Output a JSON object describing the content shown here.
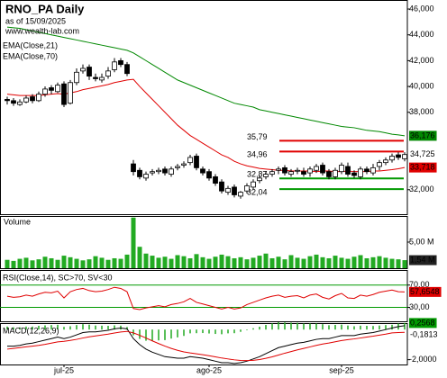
{
  "chart_data": [
    {
      "type": "candlestick",
      "title": "RNO_PA Daily",
      "subtitle": "as of 15/09/2025",
      "source": "www.wealth-lab.com",
      "categories": [
        null,
        null,
        null,
        null,
        null,
        null,
        null,
        null,
        null,
        "jul-25",
        null,
        null,
        null,
        null,
        null,
        null,
        null,
        null,
        null,
        null,
        null,
        null,
        null,
        null,
        null,
        null,
        null,
        null,
        null,
        null,
        null,
        null,
        "ago-25",
        null,
        null,
        null,
        null,
        null,
        null,
        null,
        null,
        null,
        null,
        null,
        null,
        null,
        null,
        null,
        null,
        null,
        null,
        null,
        null,
        "sep-25",
        null,
        null,
        null,
        null,
        null,
        null,
        null,
        null,
        null,
        null
      ],
      "open": [
        39.0,
        38.9,
        38.6,
        38.8,
        39.2,
        38.9,
        39.4,
        39.9,
        39.6,
        40.2,
        38.7,
        40.3,
        41.2,
        41.5,
        40.7,
        40.5,
        40.8,
        41.3,
        42.0,
        41.7,
        34.0,
        33.5,
        32.9,
        33.3,
        33.4,
        33.6,
        33.2,
        33.7,
        33.9,
        34.1,
        34.6,
        33.6,
        33.4,
        33.0,
        32.6,
        31.8,
        32.2,
        31.5,
        31.9,
        32.2,
        32.7,
        33.0,
        33.2,
        33.5,
        33.7,
        33.2,
        33.5,
        33.4,
        33.3,
        33.5,
        33.9,
        33.4,
        33.0,
        33.4,
        33.8,
        33.3,
        33.0,
        33.6,
        33.3,
        33.8,
        34.1,
        34.3,
        34.7,
        34.4
      ],
      "high": [
        39.2,
        39.1,
        39.0,
        39.3,
        39.4,
        39.6,
        40.0,
        40.1,
        40.3,
        40.4,
        40.5,
        41.4,
        41.7,
        41.7,
        41.0,
        41.0,
        41.5,
        42.2,
        42.2,
        41.9,
        34.3,
        33.7,
        33.4,
        33.6,
        33.7,
        33.8,
        33.8,
        34.0,
        34.2,
        34.7,
        34.8,
        33.8,
        33.6,
        33.2,
        32.8,
        32.3,
        32.4,
        31.9,
        32.5,
        32.8,
        33.1,
        33.4,
        33.6,
        33.8,
        33.9,
        33.6,
        33.7,
        33.7,
        33.8,
        34.0,
        34.1,
        33.6,
        33.7,
        34.1,
        34.1,
        33.5,
        33.8,
        33.8,
        34.0,
        34.3,
        34.5,
        34.8,
        34.9,
        34.9
      ],
      "low": [
        38.6,
        38.5,
        38.5,
        38.7,
        38.7,
        38.8,
        39.2,
        39.4,
        39.5,
        38.4,
        38.6,
        40.1,
        41.0,
        40.5,
        40.4,
        40.3,
        40.6,
        41.1,
        41.5,
        40.8,
        33.1,
        32.8,
        32.7,
        33.1,
        33.2,
        33.1,
        33.0,
        33.5,
        33.7,
        33.9,
        33.5,
        33.1,
        32.7,
        32.3,
        31.7,
        31.6,
        31.4,
        31.3,
        31.7,
        32.0,
        32.5,
        32.8,
        33.0,
        33.2,
        33.1,
        33.0,
        33.2,
        33.0,
        33.0,
        33.3,
        33.1,
        32.8,
        32.8,
        33.2,
        33.0,
        32.9,
        32.8,
        33.2,
        33.1,
        33.5,
        33.9,
        34.1,
        34.3,
        34.2
      ],
      "close": [
        38.9,
        38.7,
        38.8,
        39.1,
        38.9,
        39.4,
        39.8,
        39.7,
        40.1,
        38.6,
        40.3,
        41.1,
        41.4,
        40.8,
        40.6,
        40.7,
        41.2,
        41.9,
        41.7,
        41.0,
        33.4,
        33.0,
        33.2,
        33.4,
        33.5,
        33.3,
        33.6,
        33.8,
        34.0,
        34.5,
        33.7,
        33.3,
        32.9,
        32.5,
        31.9,
        32.1,
        31.6,
        31.8,
        32.3,
        32.6,
        32.9,
        33.2,
        33.4,
        33.6,
        33.3,
        33.4,
        33.5,
        33.2,
        33.6,
        33.8,
        33.3,
        33.0,
        33.5,
        33.9,
        33.2,
        33.1,
        33.6,
        33.4,
        33.7,
        34.1,
        34.3,
        34.6,
        34.5,
        34.725
      ],
      "last_label": "34,725",
      "series": [
        {
          "name": "EMA(Close,21)",
          "color": "#e00000",
          "last_label": "33,718",
          "values": [
            39.4,
            39.35,
            39.3,
            39.3,
            39.3,
            39.3,
            39.35,
            39.4,
            39.45,
            39.4,
            39.5,
            39.6,
            39.75,
            39.85,
            39.95,
            40.05,
            40.15,
            40.3,
            40.4,
            40.5,
            40.55,
            40.0,
            39.5,
            39.0,
            38.5,
            38.0,
            37.5,
            37.0,
            36.6,
            36.2,
            35.9,
            35.6,
            35.3,
            35.0,
            34.7,
            34.5,
            34.2,
            34.0,
            33.85,
            33.75,
            33.65,
            33.6,
            33.55,
            33.5,
            33.5,
            33.45,
            33.45,
            33.45,
            33.45,
            33.4,
            33.45,
            33.45,
            33.4,
            33.4,
            33.45,
            33.4,
            33.4,
            33.4,
            33.45,
            33.45,
            33.5,
            33.55,
            33.62,
            33.718
          ]
        },
        {
          "name": "EMA(Close,70)",
          "color": "#008800",
          "last_label": "36,176",
          "values": [
            44.6,
            44.55,
            44.5,
            44.4,
            44.3,
            44.2,
            44.1,
            44.0,
            43.9,
            43.8,
            43.7,
            43.6,
            43.5,
            43.4,
            43.3,
            43.2,
            43.1,
            43.0,
            42.9,
            42.8,
            42.6,
            42.3,
            42.0,
            41.7,
            41.4,
            41.1,
            40.8,
            40.5,
            40.3,
            40.1,
            39.9,
            39.7,
            39.5,
            39.3,
            39.1,
            38.9,
            38.7,
            38.6,
            38.5,
            38.4,
            38.2,
            38.1,
            38.0,
            37.9,
            37.8,
            37.7,
            37.6,
            37.5,
            37.4,
            37.3,
            37.2,
            37.1,
            37.0,
            36.9,
            36.85,
            36.8,
            36.7,
            36.6,
            36.55,
            36.5,
            36.4,
            36.3,
            36.25,
            36.176
          ]
        }
      ],
      "levels": [
        {
          "value": 35.79,
          "label": "35,79",
          "color": "#e00000"
        },
        {
          "value": 34.96,
          "label": "34,96",
          "color": "#e00000"
        },
        {
          "value": 32.87,
          "label": "32,87",
          "color": "#009900"
        },
        {
          "value": 32.04,
          "label": "32,04",
          "color": "#009900"
        }
      ],
      "ylim": [
        30.1,
        46.7
      ],
      "yticks": [
        {
          "value": 32,
          "label": "32,000"
        },
        {
          "value": 38,
          "label": "38,000"
        },
        {
          "value": 40,
          "label": "40,000"
        },
        {
          "value": 42,
          "label": "42,000"
        },
        {
          "value": 44,
          "label": "44,000"
        },
        {
          "value": 46,
          "label": "46,000"
        }
      ]
    },
    {
      "type": "bar",
      "title": "Volume",
      "color": "#22aa22",
      "last_label": "1,54 M",
      "values": [
        1.6,
        1.4,
        1.8,
        2.0,
        1.5,
        1.7,
        2.2,
        1.9,
        1.6,
        2.4,
        2.1,
        1.8,
        1.5,
        1.7,
        2.3,
        2.0,
        1.6,
        1.9,
        1.8,
        2.6,
        9.7,
        4.1,
        2.8,
        2.4,
        2.0,
        2.2,
        1.8,
        2.5,
        2.3,
        1.9,
        2.7,
        2.1,
        1.8,
        2.2,
        2.6,
        2.3,
        1.9,
        2.1,
        1.7,
        2.0,
        2.4,
        2.8,
        1.9,
        2.2,
        1.7,
        2.5,
        2.0,
        1.8,
        2.3,
        2.6,
        2.1,
        1.9,
        2.4,
        2.0,
        1.8,
        2.2,
        2.5,
        1.9,
        2.1,
        2.3,
        2.0,
        1.8,
        1.7,
        1.54
      ],
      "ylim": [
        0,
        10
      ],
      "yticks": [
        {
          "value": 5,
          "label": "5,00 M"
        }
      ]
    },
    {
      "type": "line",
      "title": "RSI(Close,14), SC>70, SV<30",
      "color": "#e00000",
      "band_color": "#009900",
      "last_label": "57,6548",
      "values": [
        50,
        48,
        49,
        52,
        50,
        54,
        57,
        56,
        59,
        47,
        58,
        62,
        64,
        60,
        58,
        59,
        62,
        66,
        64,
        58,
        28,
        26,
        29,
        31,
        33,
        31,
        35,
        37,
        40,
        46,
        39,
        36,
        33,
        30,
        27,
        30,
        27,
        29,
        35,
        39,
        43,
        47,
        50,
        52,
        48,
        50,
        51,
        47,
        52,
        54,
        48,
        45,
        51,
        55,
        47,
        46,
        52,
        50,
        53,
        57,
        59,
        61,
        58,
        57.6548
      ],
      "ylim": [
        5,
        97
      ],
      "yticks": [
        {
          "value": 30,
          "label": "30,00"
        },
        {
          "value": 70,
          "label": "70,00"
        }
      ]
    },
    {
      "type": "macd",
      "title": "MACD(12,26,9)",
      "series": [
        {
          "name": "MACD",
          "color": "#000000",
          "last_label": "0,2568",
          "values": [
            -1.1,
            -1.1,
            -1.05,
            -0.95,
            -0.9,
            -0.8,
            -0.7,
            -0.6,
            -0.5,
            -0.6,
            -0.5,
            -0.35,
            -0.2,
            -0.15,
            -0.15,
            -0.1,
            -0.05,
            0.05,
            0.1,
            0.05,
            -0.6,
            -1.0,
            -1.3,
            -1.5,
            -1.65,
            -1.8,
            -1.85,
            -1.9,
            -1.9,
            -1.8,
            -1.85,
            -1.9,
            -2.0,
            -2.1,
            -2.2,
            -2.2,
            -2.25,
            -2.2,
            -2.1,
            -1.95,
            -1.8,
            -1.6,
            -1.4,
            -1.2,
            -1.1,
            -1.0,
            -0.9,
            -0.85,
            -0.75,
            -0.65,
            -0.6,
            -0.6,
            -0.5,
            -0.4,
            -0.4,
            -0.4,
            -0.3,
            -0.25,
            -0.2,
            -0.1,
            0.0,
            0.1,
            0.2,
            0.2568
          ]
        },
        {
          "name": "Signal",
          "color": "#e00000",
          "last_label": "-0,1813",
          "values": [
            -1.3,
            -1.25,
            -1.2,
            -1.15,
            -1.1,
            -1.05,
            -0.98,
            -0.9,
            -0.82,
            -0.78,
            -0.72,
            -0.65,
            -0.56,
            -0.48,
            -0.42,
            -0.36,
            -0.3,
            -0.23,
            -0.16,
            -0.12,
            -0.22,
            -0.38,
            -0.56,
            -0.75,
            -0.93,
            -1.1,
            -1.25,
            -1.38,
            -1.48,
            -1.55,
            -1.61,
            -1.67,
            -1.74,
            -1.81,
            -1.89,
            -1.95,
            -2.01,
            -2.05,
            -2.06,
            -2.04,
            -1.99,
            -1.91,
            -1.81,
            -1.69,
            -1.57,
            -1.46,
            -1.35,
            -1.25,
            -1.15,
            -1.05,
            -0.96,
            -0.89,
            -0.81,
            -0.73,
            -0.67,
            -0.62,
            -0.56,
            -0.5,
            -0.44,
            -0.37,
            -0.3,
            -0.22,
            -0.2,
            -0.1813
          ]
        }
      ],
      "histogram": {
        "color": "#22aa22",
        "values": [
          0.2,
          0.15,
          0.15,
          0.2,
          0.2,
          0.25,
          0.28,
          0.3,
          0.32,
          0.18,
          0.22,
          0.3,
          0.36,
          0.33,
          0.27,
          0.26,
          0.25,
          0.28,
          0.26,
          0.17,
          -0.38,
          -0.62,
          -0.74,
          -0.75,
          -0.72,
          -0.7,
          -0.6,
          -0.52,
          -0.42,
          -0.25,
          -0.24,
          -0.23,
          -0.26,
          -0.29,
          -0.31,
          -0.25,
          -0.24,
          -0.15,
          -0.04,
          0.09,
          0.19,
          0.31,
          0.41,
          0.49,
          0.47,
          0.46,
          0.45,
          0.4,
          0.4,
          0.4,
          0.36,
          0.29,
          0.31,
          0.33,
          0.27,
          0.22,
          0.26,
          0.25,
          0.24,
          0.27,
          0.3,
          0.32,
          0.4,
          0.4381
        ]
      },
      "ylim": [
        -2.32,
        0.43
      ],
      "yticks": [
        {
          "value": -2,
          "label": "-2,0000"
        }
      ]
    }
  ]
}
